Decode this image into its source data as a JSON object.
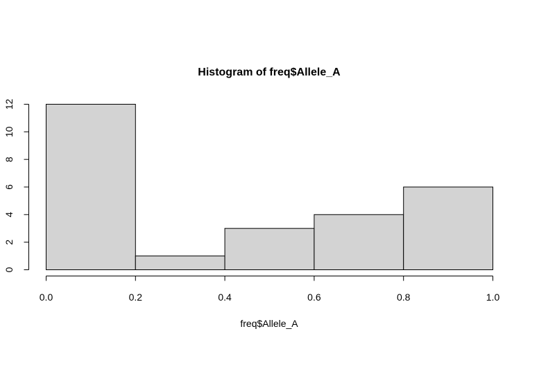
{
  "chart_data": {
    "type": "bar",
    "title": "Histogram of freq$Allele_A",
    "xlabel": "freq$Allele_A",
    "ylabel": "",
    "bins": [
      {
        "x0": 0.0,
        "x1": 0.2,
        "count": 12
      },
      {
        "x0": 0.2,
        "x1": 0.4,
        "count": 1
      },
      {
        "x0": 0.4,
        "x1": 0.6,
        "count": 3
      },
      {
        "x0": 0.6,
        "x1": 0.8,
        "count": 4
      },
      {
        "x0": 0.8,
        "x1": 1.0,
        "count": 6
      }
    ],
    "xlim": [
      0.0,
      1.0
    ],
    "ylim": [
      0,
      12
    ],
    "x_ticks": [
      "0.0",
      "0.2",
      "0.4",
      "0.6",
      "0.8",
      "1.0"
    ],
    "y_ticks": [
      "0",
      "2",
      "4",
      "6",
      "8",
      "10",
      "12"
    ],
    "bar_fill": "#d3d3d3",
    "bar_stroke": "#000000",
    "grid": false,
    "legend": "none"
  }
}
